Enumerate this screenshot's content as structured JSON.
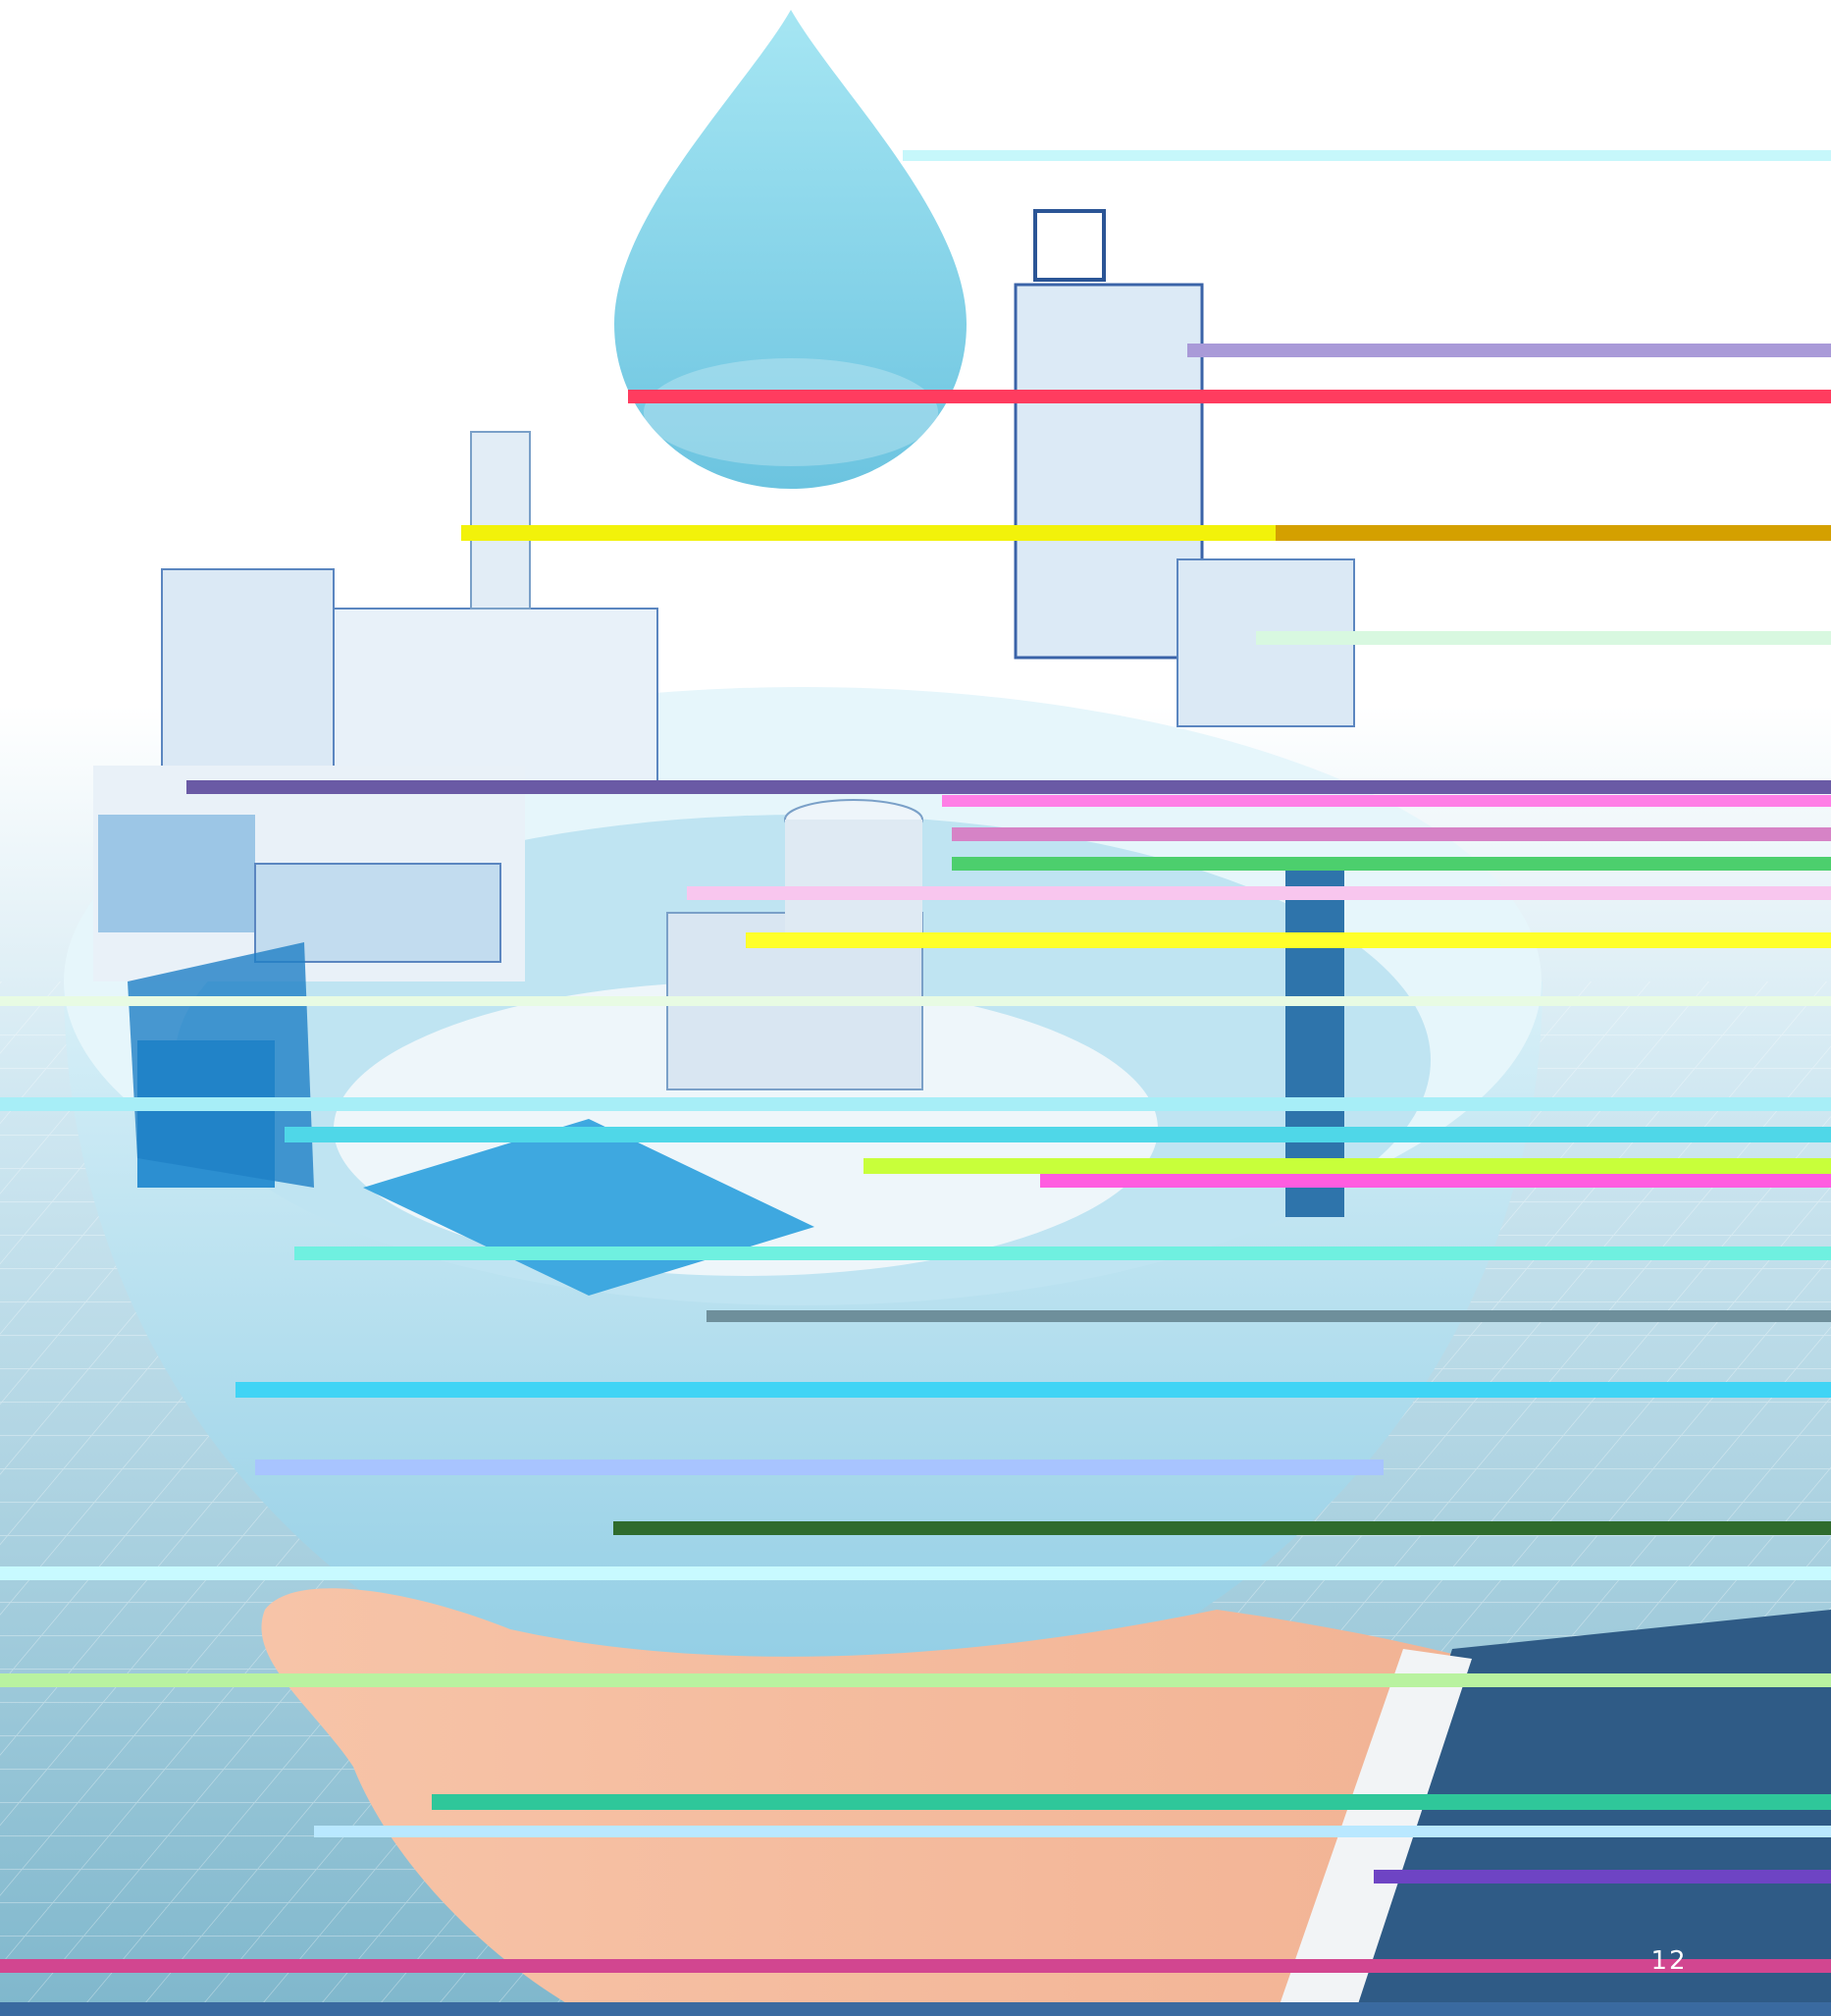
{
  "page_number": "12"
}
